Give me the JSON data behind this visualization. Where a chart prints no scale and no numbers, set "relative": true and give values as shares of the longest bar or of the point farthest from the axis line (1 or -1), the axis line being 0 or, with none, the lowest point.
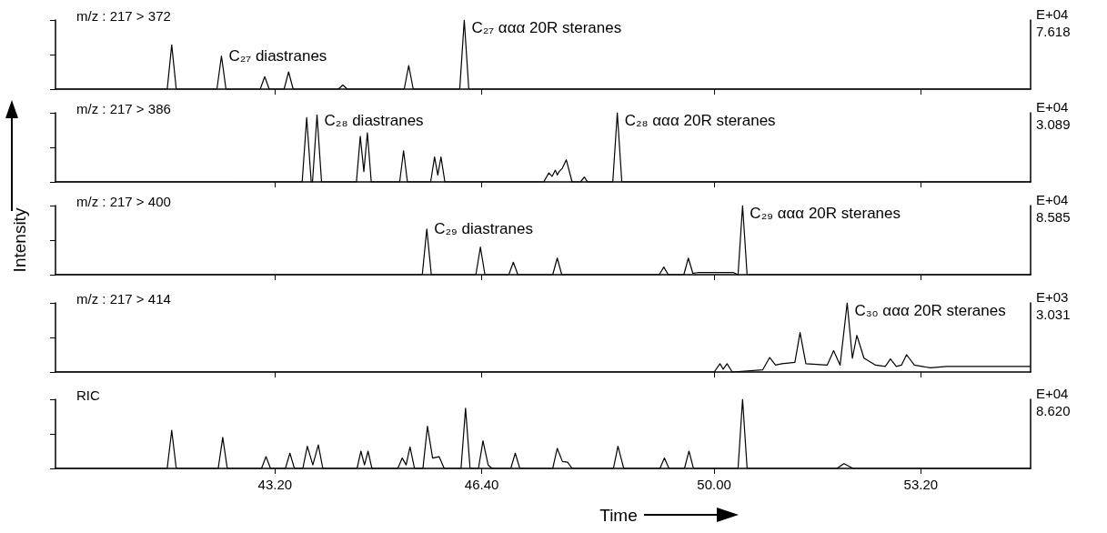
{
  "chart_data": [
    {
      "type": "line",
      "title": "m/z : 217 > 372",
      "relative": true,
      "xlim": [
        39.8,
        54.9
      ],
      "xticks": [
        43.2,
        46.4,
        50,
        53.2
      ],
      "tick_labels": false,
      "annotations": [
        {
          "text": "C₂₇ diastranes",
          "x": 42.37,
          "y": 0.48
        },
        {
          "text": "C₂₇ ααα 20R steranes",
          "x": 46.13,
          "y": 1
        },
        "E+04",
        "7.618"
      ],
      "x": [
        39.8,
        41.53,
        41.6,
        41.67,
        42.3,
        42.37,
        42.44,
        42.97,
        43.04,
        43.11,
        43.34,
        43.41,
        43.48,
        44.18,
        44.25,
        44.32,
        45.2,
        45.27,
        45.34,
        46.06,
        46.13,
        46.2,
        54.9
      ],
      "series": [
        {
          "color": "#000000",
          "values": [
            0,
            0,
            0.64,
            0,
            0,
            0.48,
            0,
            0,
            0.18,
            0,
            0,
            0.25,
            0,
            0,
            0.06,
            0,
            0,
            0.34,
            0,
            0,
            1,
            0,
            0
          ]
        }
      ]
    },
    {
      "type": "line",
      "title": "m/z : 217 > 386",
      "relative": true,
      "xlim": [
        39.8,
        54.9
      ],
      "xticks": [
        43.2,
        46.4,
        50,
        53.2
      ],
      "tick_labels": false,
      "annotations": [
        {
          "text": "C₂₈ diastranes",
          "x": 43.85,
          "y": 0.97
        },
        {
          "text": "C₂₈ ααα 20R steranes",
          "x": 48.5,
          "y": 1
        },
        "E+04",
        "3.089"
      ],
      "x": [
        39.8,
        43.62,
        43.69,
        43.76,
        43.78,
        43.85,
        43.92,
        44.46,
        44.52,
        44.575,
        44.63,
        44.69,
        45.13,
        45.19,
        45.25,
        45.61,
        45.67,
        45.72,
        45.77,
        45.83,
        47.36,
        47.44,
        47.49,
        47.54,
        47.57,
        47.6,
        47.65,
        47.71,
        47.8,
        47.93,
        47.99,
        48.04,
        48.43,
        48.5,
        48.57,
        54.9
      ],
      "series": [
        {
          "color": "#000000",
          "values": [
            0,
            0,
            0.93,
            0,
            0,
            0.97,
            0,
            0,
            0.66,
            0.15,
            0.71,
            0,
            0,
            0.45,
            0,
            0,
            0.36,
            0.1,
            0.36,
            0,
            0,
            0.13,
            0.08,
            0.17,
            0.1,
            0.15,
            0.2,
            0.32,
            0,
            0,
            0.07,
            0,
            0,
            1,
            0,
            0
          ]
        }
      ]
    },
    {
      "type": "line",
      "title": "m/z : 217 > 400",
      "ylabel": "Intensity",
      "relative": true,
      "xlim": [
        39.8,
        54.9
      ],
      "xticks": [
        43.2,
        46.4,
        50,
        53.2
      ],
      "tick_labels": false,
      "annotations": [
        {
          "text": "C₂₉ diastranes",
          "x": 45.55,
          "y": 0.66
        },
        {
          "text": "C₂₉ ααα 20R steranes",
          "x": 50.44,
          "y": 1
        },
        "E+04",
        "8.585"
      ],
      "x": [
        39.8,
        45.48,
        45.55,
        45.62,
        46.31,
        46.38,
        46.45,
        46.82,
        46.89,
        46.96,
        47.5,
        47.57,
        47.64,
        49.15,
        49.22,
        49.29,
        49.53,
        49.6,
        49.67,
        49.75,
        50.3,
        50.37,
        50.44,
        50.51,
        54.9
      ],
      "series": [
        {
          "color": "#000000",
          "values": [
            0,
            0,
            0.66,
            0,
            0,
            0.4,
            0,
            0,
            0.18,
            0,
            0,
            0.24,
            0,
            0,
            0.11,
            0,
            0,
            0.24,
            0.02,
            0.03,
            0.03,
            0,
            1,
            0,
            0
          ]
        }
      ]
    },
    {
      "type": "line",
      "title": "m/z : 217 > 414",
      "relative": true,
      "xlim": [
        39.8,
        54.9
      ],
      "xticks": [
        43.2,
        46.4,
        50,
        53.2
      ],
      "tick_labels": false,
      "annotations": [
        {
          "text": "C₃₀ ααα 20R steranes",
          "x": 52.06,
          "y": 1
        },
        "E+03",
        "3.031"
      ],
      "x": [
        39.8,
        50.0,
        50.09,
        50.14,
        50.2,
        50.28,
        50.75,
        50.86,
        50.95,
        51.05,
        51.25,
        51.33,
        51.42,
        51.75,
        51.85,
        51.95,
        52.06,
        52.14,
        52.21,
        52.32,
        52.5,
        52.65,
        52.73,
        52.82,
        52.9,
        52.98,
        53.1,
        53.35,
        53.6,
        54.81,
        54.9
      ],
      "series": [
        {
          "color": "#000000",
          "values": [
            0,
            0,
            0.12,
            0.04,
            0.12,
            0,
            0.03,
            0.21,
            0.1,
            0.12,
            0.14,
            0.57,
            0.12,
            0.1,
            0.31,
            0.1,
            1,
            0.2,
            0.53,
            0.2,
            0.1,
            0.08,
            0.19,
            0.08,
            0.1,
            0.25,
            0.1,
            0.06,
            0.08,
            0.08,
            0.08
          ]
        }
      ]
    },
    {
      "type": "line",
      "title": "RIC",
      "xlabel": "Time",
      "relative": true,
      "xlim": [
        39.8,
        54.9
      ],
      "xticks": [
        {
          "value": 43.2,
          "label": "43.20"
        },
        {
          "value": 46.4,
          "label": "46.40"
        },
        {
          "value": 50,
          "label": "50.00"
        },
        {
          "value": 53.2,
          "label": "53.20"
        }
      ],
      "annotations": [
        "E+04",
        "8.620"
      ],
      "x": [
        39.8,
        41.53,
        41.6,
        41.67,
        42.32,
        42.39,
        42.46,
        42.99,
        43.06,
        43.13,
        43.36,
        43.43,
        43.5,
        43.63,
        43.7,
        43.785,
        43.87,
        43.94,
        44.47,
        44.53,
        44.585,
        44.64,
        44.7,
        45.1,
        45.17,
        45.23,
        45.29,
        45.36,
        45.49,
        45.56,
        45.64,
        45.74,
        45.82,
        46.08,
        46.15,
        46.22,
        46.35,
        46.42,
        46.5,
        46.56,
        46.85,
        46.92,
        46.99,
        47.5,
        47.57,
        47.65,
        47.73,
        47.8,
        48.44,
        48.51,
        48.6,
        49.16,
        49.23,
        49.3,
        49.54,
        49.61,
        49.68,
        50.37,
        50.44,
        50.51,
        51.9,
        52.01,
        52.15,
        54.9
      ],
      "series": [
        {
          "color": "#000000",
          "values": [
            0,
            0,
            0.55,
            0,
            0,
            0.45,
            0,
            0,
            0.17,
            0,
            0,
            0.22,
            0,
            0,
            0.32,
            0.05,
            0.34,
            0,
            0,
            0.25,
            0.05,
            0.25,
            0,
            0,
            0.15,
            0.05,
            0.31,
            0,
            0,
            0.61,
            0.15,
            0.17,
            0,
            0,
            0.87,
            0,
            0,
            0.4,
            0.05,
            0,
            0,
            0.22,
            0,
            0,
            0.29,
            0.1,
            0.09,
            0,
            0,
            0.32,
            0,
            0,
            0.15,
            0,
            0,
            0.25,
            0,
            0,
            1,
            0,
            0,
            0.07,
            0,
            0
          ]
        }
      ]
    }
  ]
}
